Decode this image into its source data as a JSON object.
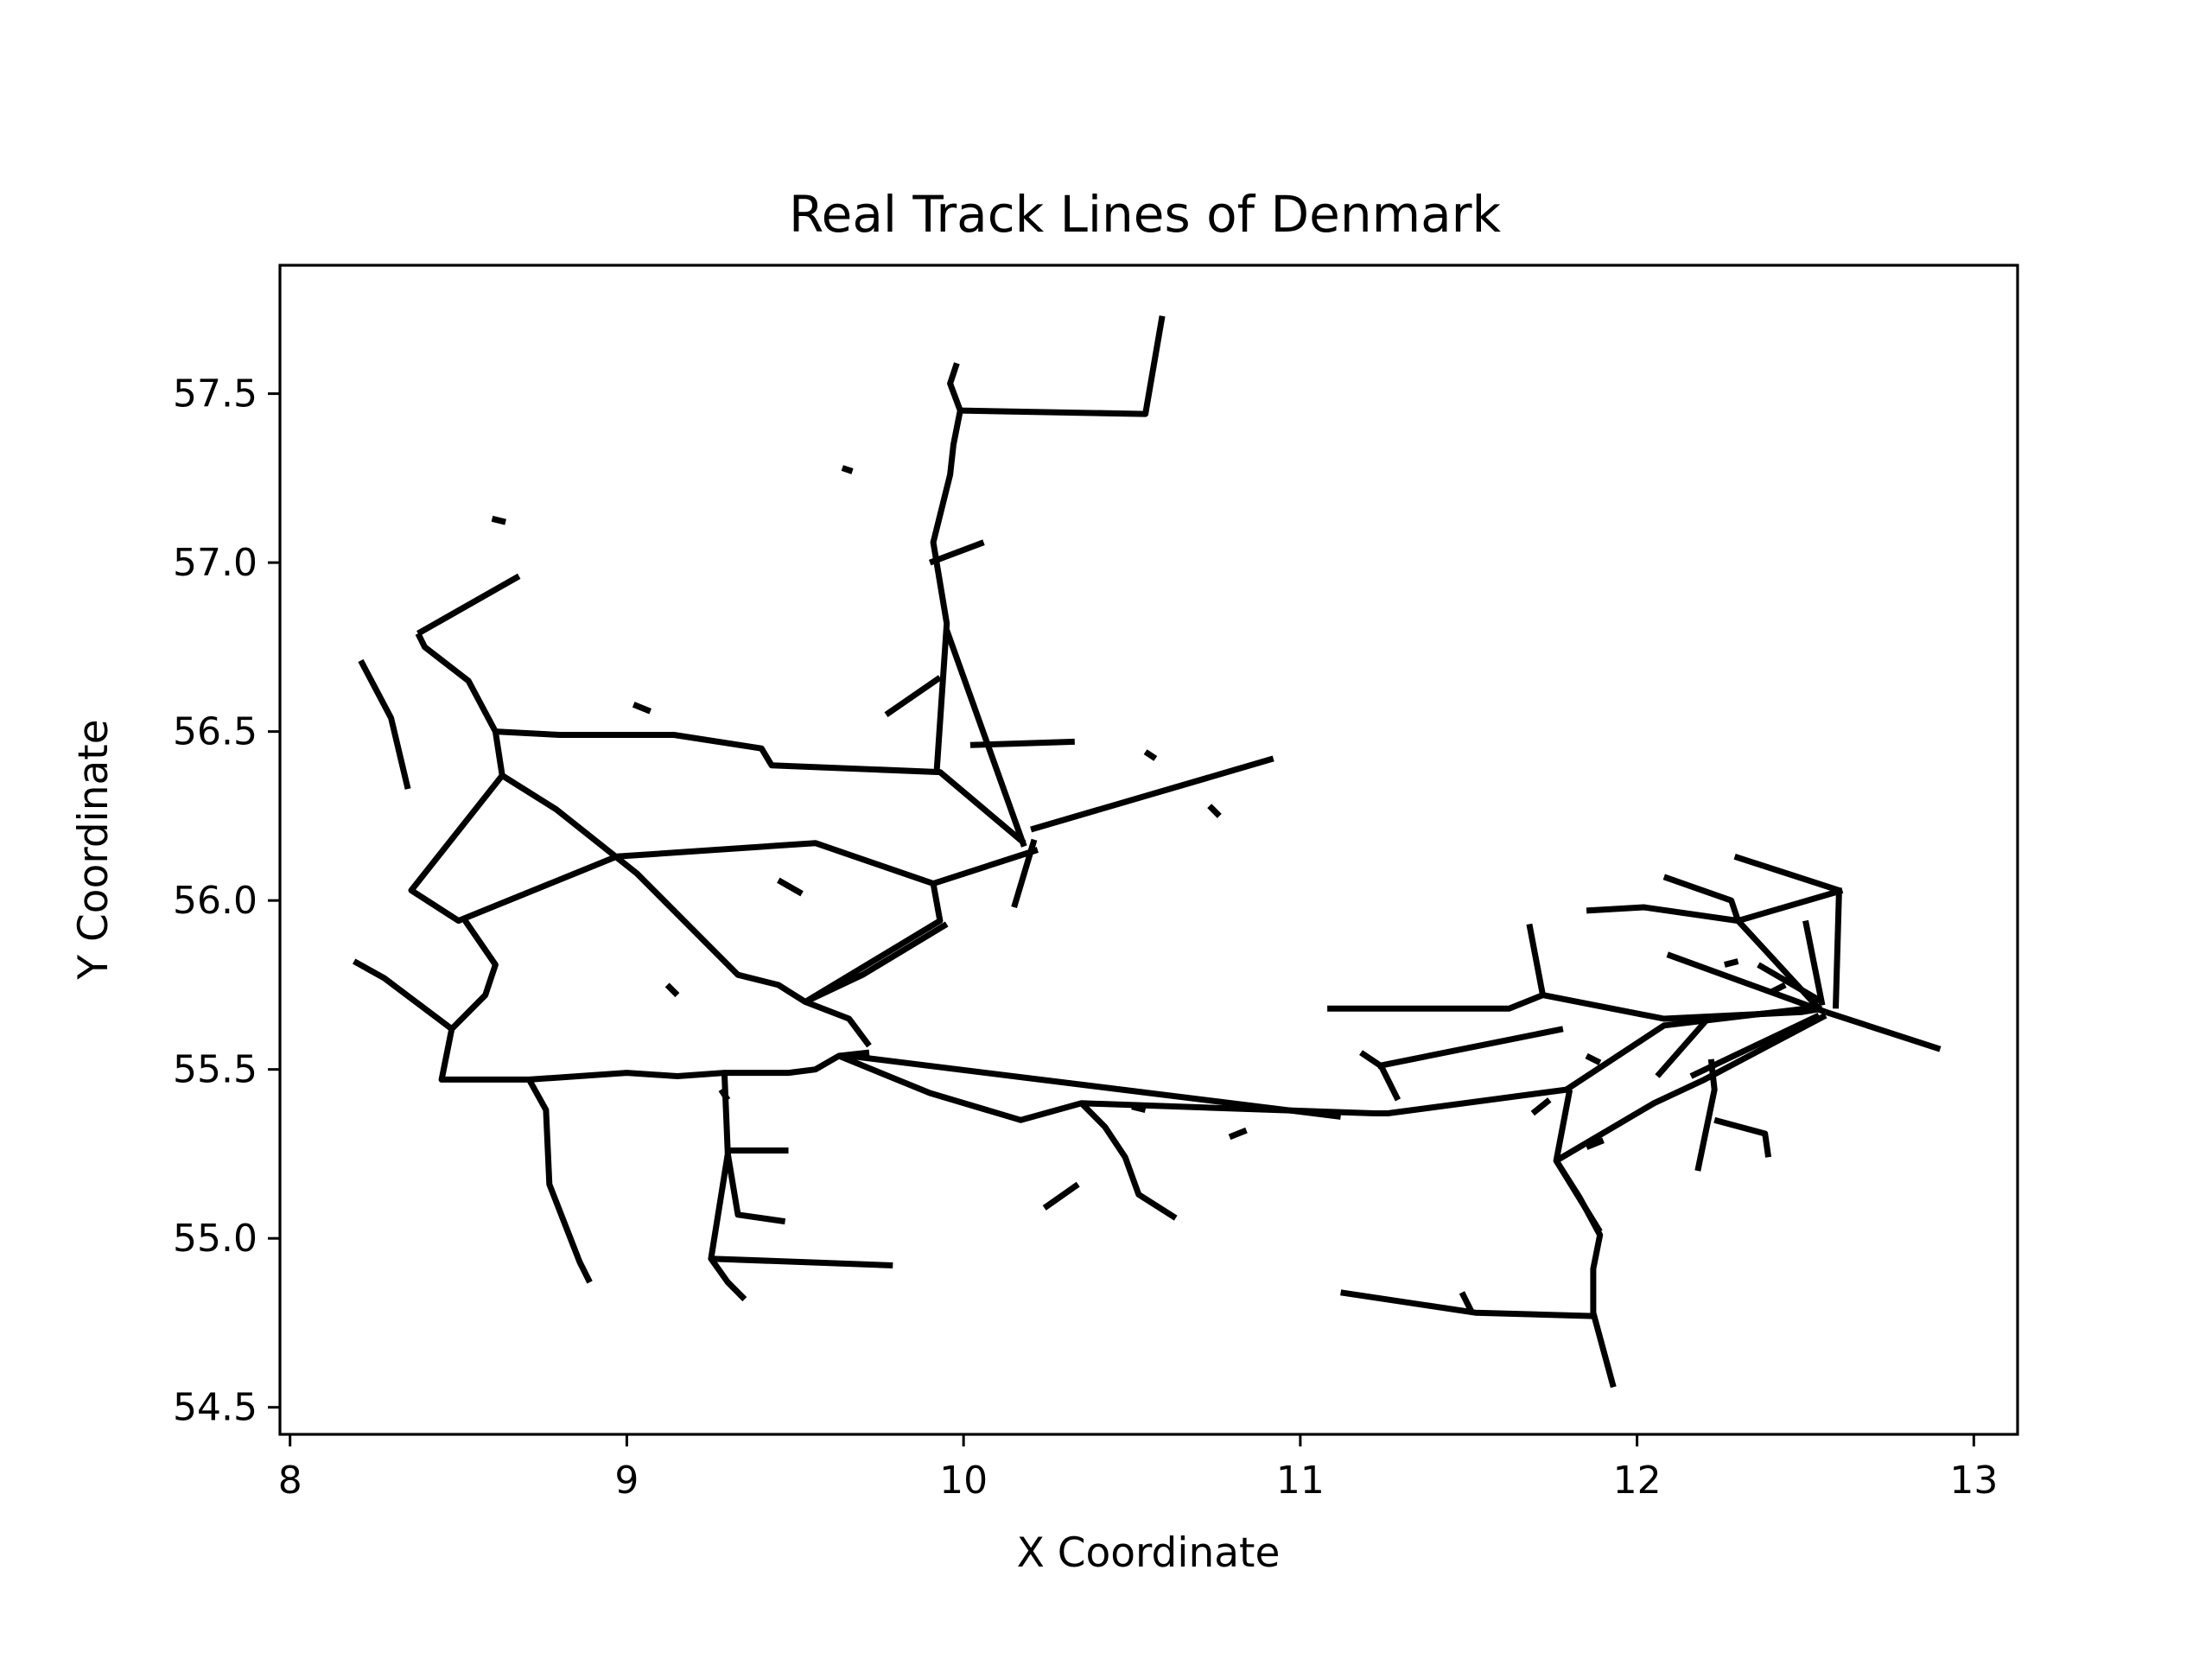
{
  "chart_data": {
    "type": "line",
    "title": "Real Track Lines of Denmark",
    "xlabel": "X Coordinate",
    "ylabel": "Y Coordinate",
    "xlim": [
      7.97,
      13.13
    ],
    "ylim": [
      54.42,
      57.88
    ],
    "x_ticks": [
      8,
      9,
      10,
      11,
      12,
      13
    ],
    "x_tick_labels": [
      "8",
      "9",
      "10",
      "11",
      "12",
      "13"
    ],
    "y_ticks": [
      54.5,
      55.0,
      55.5,
      56.0,
      56.5,
      57.0,
      57.5
    ],
    "y_tick_labels": [
      "54.5",
      "55.0",
      "55.5",
      "56.0",
      "56.5",
      "57.0",
      "57.5"
    ],
    "grid": false,
    "line_color": "#000000",
    "series": [
      {
        "points": [
          [
            9.92,
            56.38
          ],
          [
            9.95,
            56.82
          ],
          [
            9.91,
            57.06
          ],
          [
            9.96,
            57.26
          ],
          [
            9.97,
            57.35
          ],
          [
            9.99,
            57.45
          ],
          [
            9.96,
            57.53
          ],
          [
            9.98,
            57.59
          ]
        ]
      },
      {
        "points": [
          [
            9.99,
            57.45
          ],
          [
            10.54,
            57.44
          ],
          [
            10.59,
            57.73
          ]
        ]
      },
      {
        "points": [
          [
            9.9,
            57.0
          ],
          [
            10.06,
            57.06
          ]
        ]
      },
      {
        "points": [
          [
            9.95,
            56.8
          ],
          [
            10.18,
            56.16
          ]
        ]
      },
      {
        "points": [
          [
            9.77,
            56.55
          ],
          [
            9.93,
            56.66
          ]
        ]
      },
      {
        "points": [
          [
            10.02,
            56.46
          ],
          [
            10.33,
            56.47
          ]
        ]
      },
      {
        "points": [
          [
            10.2,
            56.21
          ],
          [
            10.92,
            56.42
          ]
        ]
      },
      {
        "points": [
          [
            10.21,
            56.18
          ],
          [
            10.15,
            55.98
          ]
        ]
      },
      {
        "points": [
          [
            8.38,
            56.79
          ],
          [
            8.68,
            56.96
          ]
        ]
      },
      {
        "points": [
          [
            8.38,
            56.79
          ],
          [
            8.4,
            56.75
          ],
          [
            8.53,
            56.65
          ],
          [
            8.61,
            56.5
          ],
          [
            8.63,
            56.37
          ],
          [
            8.36,
            56.03
          ],
          [
            8.5,
            55.94
          ],
          [
            8.97,
            56.13
          ],
          [
            9.56,
            56.17
          ],
          [
            9.91,
            56.05
          ],
          [
            10.22,
            56.15
          ]
        ]
      },
      {
        "points": [
          [
            8.61,
            56.5
          ],
          [
            8.8,
            56.49
          ],
          [
            9.14,
            56.49
          ],
          [
            9.4,
            56.45
          ],
          [
            9.43,
            56.4
          ],
          [
            9.93,
            56.38
          ],
          [
            10.18,
            56.17
          ]
        ]
      },
      {
        "points": [
          [
            8.63,
            56.37
          ],
          [
            8.79,
            56.27
          ],
          [
            9.03,
            56.08
          ],
          [
            9.33,
            55.78
          ],
          [
            9.45,
            55.75
          ],
          [
            9.53,
            55.7
          ],
          [
            9.93,
            55.94
          ],
          [
            9.91,
            56.05
          ]
        ]
      },
      {
        "points": [
          [
            9.53,
            55.7
          ],
          [
            9.66,
            55.65
          ],
          [
            9.72,
            55.57
          ]
        ]
      },
      {
        "points": [
          [
            9.53,
            55.7
          ],
          [
            9.7,
            55.78
          ],
          [
            9.95,
            55.93
          ]
        ]
      },
      {
        "points": [
          [
            8.21,
            56.71
          ],
          [
            8.3,
            56.54
          ],
          [
            8.35,
            56.33
          ]
        ]
      },
      {
        "points": [
          [
            8.19,
            55.82
          ],
          [
            8.28,
            55.77
          ],
          [
            8.48,
            55.62
          ],
          [
            8.58,
            55.72
          ],
          [
            8.61,
            55.81
          ],
          [
            8.52,
            55.94
          ]
        ]
      },
      {
        "points": [
          [
            8.48,
            55.62
          ],
          [
            8.45,
            55.47
          ],
          [
            8.71,
            55.47
          ],
          [
            9.0,
            55.49
          ],
          [
            9.15,
            55.48
          ],
          [
            9.29,
            55.49
          ],
          [
            9.48,
            55.49
          ],
          [
            9.56,
            55.5
          ],
          [
            9.63,
            55.54
          ],
          [
            9.72,
            55.55
          ]
        ]
      },
      {
        "points": [
          [
            8.71,
            55.47
          ],
          [
            8.76,
            55.38
          ],
          [
            8.77,
            55.16
          ],
          [
            8.86,
            54.93
          ],
          [
            8.89,
            54.87
          ]
        ]
      },
      {
        "points": [
          [
            9.29,
            55.49
          ],
          [
            9.3,
            55.25
          ],
          [
            9.25,
            54.94
          ],
          [
            9.3,
            54.87
          ],
          [
            9.35,
            54.82
          ]
        ]
      },
      {
        "points": [
          [
            9.3,
            55.25
          ],
          [
            9.33,
            55.07
          ],
          [
            9.47,
            55.05
          ]
        ]
      },
      {
        "points": [
          [
            9.3,
            55.26
          ],
          [
            9.48,
            55.26
          ]
        ]
      },
      {
        "points": [
          [
            9.25,
            54.94
          ],
          [
            9.79,
            54.92
          ]
        ]
      },
      {
        "points": [
          [
            9.63,
            55.54
          ],
          [
            9.9,
            55.43
          ],
          [
            10.17,
            55.35
          ],
          [
            10.35,
            55.4
          ],
          [
            11.22,
            55.37
          ],
          [
            11.26,
            55.37
          ],
          [
            11.79,
            55.44
          ],
          [
            12.08,
            55.63
          ],
          [
            12.5,
            55.68
          ]
        ]
      },
      {
        "points": [
          [
            9.66,
            55.54
          ],
          [
            11.12,
            55.36
          ]
        ]
      },
      {
        "points": [
          [
            10.35,
            55.4
          ],
          [
            10.42,
            55.33
          ],
          [
            10.48,
            55.24
          ],
          [
            10.52,
            55.13
          ],
          [
            10.63,
            55.06
          ]
        ]
      },
      {
        "points": [
          [
            10.24,
            55.09
          ],
          [
            10.34,
            55.16
          ]
        ]
      },
      {
        "points": [
          [
            11.08,
            55.68
          ],
          [
            11.62,
            55.68
          ],
          [
            11.72,
            55.72
          ],
          [
            12.08,
            55.65
          ],
          [
            12.49,
            55.67
          ],
          [
            12.55,
            55.68
          ]
        ]
      },
      {
        "points": [
          [
            11.68,
            55.93
          ],
          [
            11.72,
            55.72
          ]
        ]
      },
      {
        "points": [
          [
            11.18,
            55.55
          ],
          [
            11.24,
            55.51
          ],
          [
            11.29,
            55.41
          ]
        ]
      },
      {
        "points": [
          [
            11.23,
            55.51
          ],
          [
            11.78,
            55.62
          ]
        ]
      },
      {
        "points": [
          [
            11.8,
            55.44
          ],
          [
            11.76,
            55.23
          ],
          [
            11.83,
            55.12
          ],
          [
            11.89,
            55.01
          ],
          [
            11.87,
            54.91
          ],
          [
            11.87,
            54.78
          ],
          [
            11.93,
            54.56
          ]
        ]
      },
      {
        "points": [
          [
            11.76,
            55.23
          ],
          [
            11.89,
            55.02
          ]
        ]
      },
      {
        "points": [
          [
            11.76,
            55.23
          ],
          [
            12.05,
            55.4
          ],
          [
            12.2,
            55.47
          ],
          [
            12.56,
            55.66
          ]
        ]
      },
      {
        "points": [
          [
            12.06,
            55.48
          ],
          [
            12.21,
            55.65
          ],
          [
            12.54,
            55.68
          ]
        ]
      },
      {
        "points": [
          [
            11.12,
            54.84
          ],
          [
            11.52,
            54.78
          ],
          [
            11.87,
            54.77
          ]
        ]
      },
      {
        "points": [
          [
            11.48,
            54.84
          ],
          [
            11.51,
            54.78
          ]
        ]
      },
      {
        "points": [
          [
            12.22,
            55.53
          ],
          [
            12.23,
            55.44
          ],
          [
            12.18,
            55.2
          ]
        ]
      },
      {
        "points": [
          [
            12.23,
            55.35
          ],
          [
            12.38,
            55.31
          ],
          [
            12.39,
            55.24
          ]
        ]
      },
      {
        "points": [
          [
            12.16,
            55.48
          ],
          [
            12.54,
            55.66
          ]
        ]
      },
      {
        "points": [
          [
            11.85,
            55.97
          ],
          [
            12.02,
            55.98
          ],
          [
            12.3,
            55.94
          ],
          [
            12.61,
            56.03
          ]
        ]
      },
      {
        "points": [
          [
            12.08,
            56.07
          ],
          [
            12.28,
            56.0
          ],
          [
            12.3,
            55.94
          ],
          [
            12.54,
            55.68
          ]
        ]
      },
      {
        "points": [
          [
            12.29,
            56.13
          ],
          [
            12.6,
            56.03
          ],
          [
            12.59,
            55.68
          ]
        ]
      },
      {
        "points": [
          [
            12.5,
            55.94
          ],
          [
            12.55,
            55.69
          ]
        ]
      },
      {
        "points": [
          [
            12.09,
            55.84
          ],
          [
            12.56,
            55.67
          ]
        ]
      },
      {
        "points": [
          [
            12.36,
            55.81
          ],
          [
            12.55,
            55.7
          ]
        ]
      },
      {
        "points": [
          [
            12.56,
            55.67
          ],
          [
            12.9,
            55.56
          ]
        ]
      },
      {
        "points": [
          [
            9.64,
            57.28
          ],
          [
            9.67,
            57.27
          ]
        ]
      },
      {
        "points": [
          [
            8.6,
            57.13
          ],
          [
            8.64,
            57.12
          ]
        ]
      },
      {
        "points": [
          [
            9.02,
            56.58
          ],
          [
            9.07,
            56.56
          ]
        ]
      },
      {
        "points": [
          [
            9.45,
            56.06
          ],
          [
            9.52,
            56.02
          ]
        ]
      },
      {
        "points": [
          [
            9.12,
            55.75
          ],
          [
            9.15,
            55.72
          ]
        ]
      },
      {
        "points": [
          [
            10.54,
            56.44
          ],
          [
            10.57,
            56.42
          ]
        ]
      },
      {
        "points": [
          [
            10.73,
            56.28
          ],
          [
            10.76,
            56.25
          ]
        ]
      },
      {
        "points": [
          [
            9.28,
            55.44
          ],
          [
            9.3,
            55.41
          ]
        ]
      },
      {
        "points": [
          [
            10.5,
            55.39
          ],
          [
            10.54,
            55.38
          ]
        ]
      },
      {
        "points": [
          [
            10.79,
            55.3
          ],
          [
            10.84,
            55.32
          ]
        ]
      },
      {
        "points": [
          [
            11.69,
            55.37
          ],
          [
            11.74,
            55.41
          ]
        ]
      },
      {
        "points": [
          [
            11.85,
            55.54
          ],
          [
            11.89,
            55.52
          ]
        ]
      },
      {
        "points": [
          [
            11.85,
            55.27
          ],
          [
            11.9,
            55.29
          ]
        ]
      },
      {
        "points": [
          [
            12.26,
            55.81
          ],
          [
            12.3,
            55.82
          ]
        ]
      },
      {
        "points": [
          [
            12.4,
            55.73
          ],
          [
            12.44,
            55.75
          ]
        ]
      }
    ]
  }
}
